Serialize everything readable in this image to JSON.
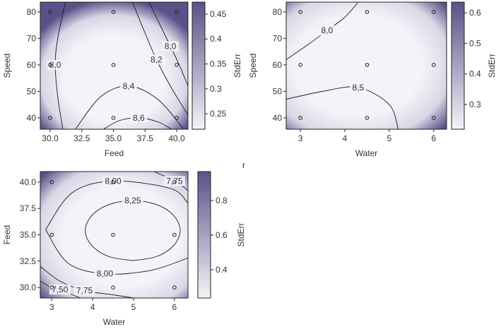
{
  "note": "r",
  "chart_data": [
    {
      "type": "contour",
      "x_label": "Feed",
      "y_label": "Speed",
      "xlim": [
        29.22,
        40.89
      ],
      "ylim": [
        35.7,
        83.7
      ],
      "xticks": [
        {
          "value": 30,
          "label": "30.0"
        },
        32.5,
        {
          "value": 35,
          "label": "35.0"
        },
        37.5,
        {
          "value": 40,
          "label": "40.0"
        }
      ],
      "yticks": [
        40,
        50,
        60,
        70,
        80
      ],
      "points": {
        "x": [
          30,
          35,
          40,
          30,
          35,
          40,
          30,
          35,
          40
        ],
        "y": [
          80,
          80,
          80,
          60,
          60,
          60,
          40,
          40,
          40
        ]
      },
      "contours": [
        {
          "label": "8,0",
          "x": [
            31.2,
            30.6,
            30.4,
            30.6,
            31.0
          ],
          "y": [
            83.7,
            70,
            60,
            48,
            35.7
          ]
        },
        {
          "label": "8,0",
          "x": [
            37.8,
            38.8,
            39.5,
            40.2,
            40.89
          ],
          "y": [
            83.7,
            74,
            67,
            60,
            52
          ]
        },
        {
          "label": "8,2",
          "x": [
            36.5,
            37.5,
            38.4,
            39.5,
            40.89
          ],
          "y": [
            83.7,
            72,
            62,
            52,
            41
          ]
        },
        {
          "label": "8,4",
          "x": [
            32,
            34,
            36.2,
            38.5,
            40.5
          ],
          "y": [
            35.7,
            48,
            52,
            47,
            36
          ]
        },
        {
          "label": "8,6",
          "x": [
            34.2,
            35.5,
            37,
            38.5,
            39.6
          ],
          "y": [
            35.7,
            39,
            40,
            38.5,
            35.7
          ]
        }
      ],
      "colorbar": {
        "label": "StdErr",
        "lim": [
          0.219,
          0.474
        ],
        "ticks": [
          0.25,
          0.3,
          0.35,
          0.4,
          0.45
        ]
      },
      "colors": {
        "low": "#f4f3f8",
        "high": "#5b5188"
      }
    },
    {
      "type": "contour",
      "x_label": "Water",
      "y_label": "Speed",
      "xlim": [
        2.68,
        6.29
      ],
      "ylim": [
        35.7,
        83.7
      ],
      "xticks": [
        3,
        4,
        5,
        6
      ],
      "yticks": [
        40,
        50,
        60,
        70,
        80
      ],
      "points": {
        "x": [
          3,
          4.5,
          6,
          3,
          4.5,
          6,
          3,
          4.5,
          6
        ],
        "y": [
          80,
          80,
          80,
          60,
          60,
          60,
          40,
          40,
          40
        ]
      },
      "contours": [
        {
          "label": "8,0",
          "x": [
            2.68,
            3.2,
            3.6,
            4.0,
            4.3
          ],
          "y": [
            62,
            68,
            73,
            78,
            83.7
          ]
        },
        {
          "label": "8,5",
          "x": [
            2.68,
            3.5,
            4.3,
            5.0,
            5.2
          ],
          "y": [
            47,
            50,
            51.5,
            45,
            35.7
          ]
        }
      ],
      "colorbar": {
        "label": "StdErr",
        "lim": [
          0.219,
          0.635
        ],
        "ticks": [
          0.3,
          0.4,
          0.5,
          0.6
        ]
      },
      "colors": {
        "low": "#f4f3f8",
        "high": "#5b5188"
      }
    },
    {
      "type": "contour",
      "x_label": "Water",
      "y_label": "Feed",
      "xlim": [
        2.72,
        6.33
      ],
      "ylim": [
        29.0,
        41.0
      ],
      "xticks": [
        3,
        4,
        5,
        6
      ],
      "yticks": [
        {
          "value": 30,
          "label": "30.0"
        },
        32.5,
        {
          "value": 35,
          "label": "35.0"
        },
        37.5,
        {
          "value": 40,
          "label": "40.0"
        }
      ],
      "points": {
        "x": [
          3,
          4.5,
          6,
          3,
          4.5,
          6,
          3,
          4.5,
          6
        ],
        "y": [
          40,
          40,
          40,
          35,
          35,
          35,
          30,
          30,
          30
        ]
      },
      "contours": [
        {
          "label": "8,25",
          "x": [
            4.98,
            5.56,
            5.98,
            6.14,
            5.98,
            5.56,
            4.98,
            4.4,
            3.98,
            3.82,
            3.98,
            4.4,
            4.98
          ],
          "y": [
            32.55,
            32.93,
            33.98,
            35.4,
            36.83,
            37.87,
            38.25,
            37.87,
            36.83,
            35.4,
            33.98,
            32.93,
            32.55
          ]
        },
        {
          "label": "8,00",
          "x": [
            6.33,
            5.9,
            4.5,
            3.5,
            2.85
          ],
          "y": [
            38.0,
            39.4,
            40.1,
            39.0,
            35.5
          ]
        },
        {
          "label": "8,00",
          "x": [
            2.85,
            3.4,
            4.3,
            5.4,
            6.33
          ],
          "y": [
            35.5,
            32.3,
            31.3,
            31.6,
            32.8
          ]
        },
        {
          "label": "7,75",
          "x": [
            5.5,
            5.8,
            6.0,
            6.2,
            6.33
          ],
          "y": [
            41.0,
            40.5,
            40.1,
            39.6,
            39.2
          ]
        },
        {
          "label": "7,75",
          "x": [
            2.72,
            3.2,
            3.8,
            4.5,
            5.0
          ],
          "y": [
            32.0,
            30.6,
            29.7,
            29.3,
            29.0
          ]
        },
        {
          "label": "7,50",
          "x": [
            2.72,
            2.95,
            3.2,
            3.45,
            3.7
          ],
          "y": [
            30.6,
            30.1,
            29.8,
            29.4,
            29.0
          ]
        }
      ],
      "colorbar": {
        "label": "StdErr",
        "lim": [
          0.237,
          0.967
        ],
        "ticks": [
          0.4,
          0.6,
          0.8
        ]
      },
      "colors": {
        "low": "#f4f3f8",
        "high": "#5b5188"
      }
    }
  ]
}
